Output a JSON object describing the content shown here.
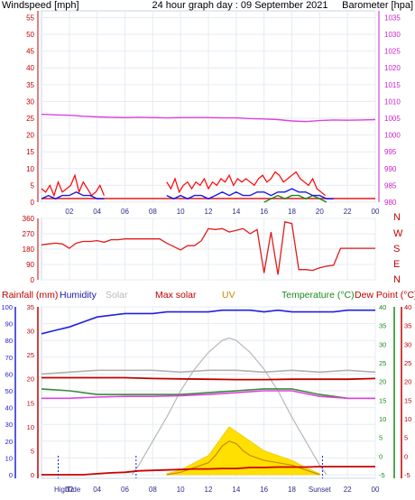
{
  "title": "24 hour graph day : 09 September 2021",
  "colors": {
    "wind_speed": "#e01b1b",
    "gust": "#ff0000",
    "wind_avg": "#1818e8",
    "wind_green": "#1a8a1a",
    "barometer": "#e040e0",
    "direction": "#e01b1b",
    "humidity": "#2020e0",
    "solar": "#b0b0b0",
    "max_solar": "#c00000",
    "uv": "#cc8800",
    "temperature": "#3a8a3a",
    "dew_point": "#cc0000",
    "dew_line": "#dd44dd",
    "rain": "#cc0000",
    "solar_fill": "#ffe000",
    "grid": "#9ab0c8"
  },
  "x_tick_labels": [
    "02",
    "04",
    "06",
    "08",
    "10",
    "12",
    "14",
    "16",
    "18",
    "20",
    "22",
    "00"
  ],
  "chart_data": [
    {
      "type": "line",
      "name": "wind-barometer",
      "left_axis_label": "Windspeed [mph]",
      "right_axis_label": "Barometer [hpa]",
      "y_left_ticks": [
        "0",
        "5",
        "10",
        "15",
        "20",
        "25",
        "30",
        "35",
        "40",
        "45",
        "50",
        "55"
      ],
      "y_right_ticks": [
        "980",
        "985",
        "990",
        "995",
        "1000",
        "1005",
        "1010",
        "1015",
        "1020",
        "1025",
        "1030",
        "1035"
      ],
      "ylim_left": [
        0,
        57
      ],
      "xlim_hours": [
        0,
        24
      ],
      "barometer": {
        "x": [
          0,
          1,
          2,
          3,
          4,
          5,
          6,
          7,
          8,
          9,
          10,
          11,
          12,
          13,
          14,
          15,
          16,
          17,
          18,
          19,
          20,
          21,
          22,
          23,
          24
        ],
        "y": [
          1006.2,
          1006.0,
          1005.9,
          1005.6,
          1005.4,
          1005.3,
          1005.2,
          1005.3,
          1005.2,
          1005.1,
          1005.2,
          1005.2,
          1005.2,
          1005.1,
          1005.1,
          1004.9,
          1004.8,
          1004.6,
          1004.2,
          1004.0,
          1004.3,
          1004.5,
          1004.4,
          1004.5,
          1004.6
        ]
      },
      "wind_gust_segments": [
        {
          "x": [
            0.0,
            0.3,
            0.6,
            0.9,
            1.2,
            1.5,
            1.8,
            2.1,
            2.4,
            2.7,
            3.0,
            3.3,
            3.6,
            3.9,
            4.2,
            4.5
          ],
          "y": [
            4,
            3,
            5,
            2,
            6,
            3,
            4,
            5,
            8,
            3,
            6,
            4,
            2,
            3,
            5,
            2
          ]
        },
        {
          "x": [
            9.0,
            9.3,
            9.6,
            9.9,
            10.2,
            10.5,
            10.8,
            11.1,
            11.4,
            11.7,
            12.0,
            12.3,
            12.6,
            12.9,
            13.2,
            13.5,
            13.8,
            14.1,
            14.4,
            14.7,
            15.0,
            15.3,
            15.6,
            15.9,
            16.2,
            16.5,
            16.8,
            17.1,
            17.4,
            17.7,
            18.0,
            18.3,
            18.6,
            18.9,
            19.2,
            19.5,
            19.8,
            20.1,
            20.4
          ],
          "y": [
            6,
            4,
            7,
            3,
            5,
            6,
            4,
            6,
            5,
            7,
            4,
            6,
            5,
            7,
            6,
            8,
            5,
            7,
            6,
            7,
            6,
            5,
            7,
            8,
            6,
            7,
            9,
            8,
            6,
            7,
            8,
            9,
            7,
            6,
            5,
            7,
            4,
            3,
            2
          ]
        }
      ],
      "wind_avg_segments": [
        {
          "x": [
            0.0,
            0.5,
            1.0,
            1.5,
            2.0,
            2.5,
            3.0,
            3.5,
            4.0,
            4.5
          ],
          "y": [
            1,
            2,
            1,
            2,
            2,
            3,
            2,
            2,
            1,
            1
          ]
        },
        {
          "x": [
            9.0,
            9.5,
            10.0,
            10.5,
            11.0,
            11.5,
            12.0,
            12.5,
            13.0,
            13.5,
            14.0,
            14.5,
            15.0,
            15.5,
            16.0,
            16.5,
            17.0,
            17.5,
            18.0,
            18.5,
            19.0,
            19.5,
            20.0,
            20.5,
            21.0
          ],
          "y": [
            2,
            1,
            2,
            1,
            2,
            2,
            1,
            2,
            3,
            2,
            3,
            2,
            2,
            3,
            3,
            2,
            3,
            3,
            4,
            3,
            3,
            2,
            2,
            1,
            1
          ]
        }
      ],
      "wind_calm_segments": [
        {
          "x": [
            16.0,
            16.5,
            17.0,
            17.5,
            18.0,
            18.5,
            19.0,
            19.5,
            20.0,
            20.5
          ],
          "y": [
            0,
            1,
            2,
            1,
            2,
            2,
            1,
            2,
            1,
            0
          ]
        }
      ]
    },
    {
      "type": "line",
      "name": "wind-direction",
      "right_axis_letters": [
        "N",
        "W",
        "S",
        "E",
        "N"
      ],
      "y_ticks": [
        "0",
        "90",
        "180",
        "270",
        "360"
      ],
      "ylim": [
        0,
        360
      ],
      "x": [
        0,
        0.5,
        1,
        1.5,
        2,
        2.5,
        3,
        3.5,
        4,
        4.5,
        5,
        5.5,
        6,
        6.5,
        7,
        7.5,
        8,
        8.5,
        9,
        9.5,
        10,
        10.5,
        11,
        11.5,
        12,
        12.5,
        13,
        13.5,
        14,
        14.5,
        15,
        15.5,
        16,
        16.5,
        17,
        17.5,
        18,
        18.5,
        19,
        19.5,
        20,
        20.5,
        21,
        21.5,
        22,
        22.5,
        23,
        23.5,
        24
      ],
      "y": [
        205,
        210,
        215,
        210,
        185,
        215,
        225,
        225,
        230,
        220,
        235,
        235,
        240,
        240,
        240,
        240,
        240,
        240,
        215,
        195,
        175,
        200,
        200,
        230,
        300,
        295,
        300,
        280,
        290,
        300,
        270,
        295,
        40,
        280,
        30,
        340,
        330,
        60,
        60,
        55,
        70,
        80,
        85,
        185,
        185,
        185,
        185,
        185,
        185
      ]
    },
    {
      "type": "line",
      "name": "combined",
      "labels": [
        "Rainfall (mm)",
        "Humidity",
        "Solar",
        "Max solar",
        "UV",
        "Temperature (°C)",
        "Dew Point (°C)"
      ],
      "y_left_rain_ticks": [
        "0",
        "5",
        "10",
        "15",
        "20",
        "25",
        "30",
        "35"
      ],
      "y_left_hum_ticks": [
        "0",
        "10",
        "20",
        "30",
        "40",
        "50",
        "60",
        "70",
        "80",
        "90",
        "100"
      ],
      "y_right_temp_ticks": [
        "-5",
        "0",
        "5",
        "10",
        "15",
        "20",
        "25",
        "30",
        "35",
        "40"
      ],
      "x_bottom_labels": [
        "High",
        "Tide",
        "02",
        "04",
        "06",
        "08",
        "10",
        "12",
        "14",
        "16",
        "18",
        "Sunset",
        "22",
        "00"
      ],
      "humidity": {
        "x": [
          0,
          1,
          2,
          3,
          4,
          5,
          6,
          7,
          8,
          9,
          10,
          11,
          12,
          13,
          14,
          15,
          16,
          17,
          18,
          19,
          20,
          21,
          22,
          23,
          24
        ],
        "y": [
          84,
          86,
          88,
          91,
          94,
          95,
          96,
          96,
          96,
          97,
          97,
          97,
          97,
          98,
          98,
          98,
          97,
          98,
          97,
          97,
          97,
          97,
          98,
          98,
          98
        ]
      },
      "max_solar": {
        "x": [
          0,
          2,
          4,
          6,
          8,
          10,
          12,
          14,
          16,
          18,
          20,
          22,
          24
        ],
        "y": [
          21,
          21,
          21,
          21,
          20.8,
          20.7,
          20.6,
          20.5,
          20.5,
          20.6,
          20.6,
          20.6,
          20.8
        ]
      },
      "solar_grey": {
        "x": [
          0,
          2,
          4,
          6,
          8,
          10,
          12,
          14,
          16,
          18,
          20,
          22,
          24
        ],
        "y": [
          22,
          22.5,
          23,
          23,
          23,
          22.5,
          23,
          23,
          22.5,
          23,
          22.5,
          23,
          22.5
        ]
      },
      "temperature": {
        "x": [
          0,
          2,
          4,
          6,
          8,
          10,
          12,
          14,
          16,
          18,
          20,
          22,
          24
        ],
        "y": [
          18,
          17.5,
          16.5,
          16.5,
          16.5,
          16.5,
          17,
          17.5,
          18,
          18,
          16.5,
          15.5,
          15.5
        ]
      },
      "dew_point": {
        "x": [
          0,
          2,
          4,
          6,
          8,
          10,
          12,
          14,
          16,
          18,
          20,
          22,
          24
        ],
        "y": [
          15.5,
          15.5,
          15.8,
          16,
          16,
          16.2,
          16.5,
          17,
          17.5,
          17.5,
          16,
          15.5,
          15.5
        ]
      },
      "solar_curve": {
        "x": [
          6.5,
          7,
          8,
          9,
          10,
          11,
          12,
          13,
          13.5,
          14,
          15,
          16,
          17,
          18,
          19,
          20,
          20.5
        ],
        "y": [
          0,
          2,
          7,
          12,
          17.5,
          22,
          25.5,
          28,
          28.5,
          28,
          25.5,
          22,
          17.5,
          12,
          7,
          2,
          0
        ]
      },
      "solar_fill": {
        "x": [
          9,
          10,
          11,
          12,
          12.5,
          13,
          13.5,
          14,
          14.5,
          15,
          16,
          17,
          18,
          19,
          20
        ],
        "y": [
          0.2,
          1,
          2.5,
          4,
          6,
          8,
          10,
          9,
          8,
          7,
          5,
          4,
          3,
          1.5,
          0.2
        ]
      },
      "uv": {
        "x": [
          9,
          10,
          11,
          12,
          12.5,
          13,
          13.5,
          14,
          14.5,
          15,
          16,
          17,
          18,
          19,
          20
        ],
        "y": [
          0,
          0.5,
          1.5,
          2.5,
          4,
          6,
          7,
          6.5,
          5,
          4,
          3,
          2.5,
          2,
          1,
          0
        ]
      },
      "rain_accum": {
        "x": [
          0,
          1,
          2,
          3,
          4,
          5,
          6,
          7,
          8,
          9,
          10,
          11,
          12,
          13,
          14,
          15,
          16,
          17,
          18,
          19,
          20,
          21,
          22,
          23,
          24
        ],
        "y": [
          0,
          0,
          0,
          0,
          0.2,
          0.4,
          0.5,
          0.8,
          0.9,
          1.0,
          1.1,
          1.2,
          1.2,
          1.3,
          1.3,
          1.5,
          1.5,
          1.6,
          1.6,
          1.6,
          1.7,
          1.7,
          1.7,
          1.7,
          1.7
        ]
      },
      "markers_hours": [
        1.2,
        6.8,
        20.2
      ]
    }
  ]
}
